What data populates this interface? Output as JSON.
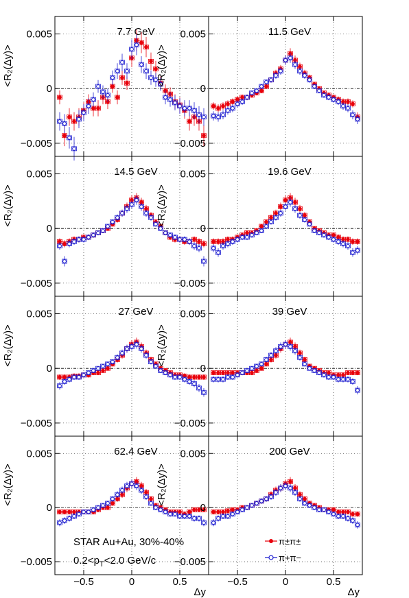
{
  "figure": {
    "ylabel": "<R₂(Δy)>",
    "xlabel": "Δy",
    "x_ticks": [
      "−0.5",
      "0",
      "0.5"
    ],
    "x_tick_values": [
      -0.5,
      0,
      0.5
    ],
    "y_ticks": [
      "−0.005",
      "0",
      "0.005"
    ],
    "y_tick_values": [
      -0.005,
      0,
      0.005
    ],
    "colors": {
      "pi_pm_pi_pm": "#e8000b",
      "pi_p_pi_m": "#1f1fd0",
      "axis": "#000000",
      "grid": "#000000"
    }
  },
  "annotations": {
    "line1": "STAR Au+Au, 30%-40%",
    "line2": "0.2<p",
    "line2_sub": "T",
    "line2_end": "<2.0 GeV/c"
  },
  "legend": {
    "position": "bottom-right panel",
    "entry1": "π±π±",
    "entry2": "π+π−"
  },
  "chart_data": [
    {
      "type": "scatter",
      "title": "7.7 GeV",
      "xlim": [
        -0.8,
        0.8
      ],
      "ylim": [
        -0.0062,
        0.0066
      ],
      "x": [
        -0.75,
        -0.7,
        -0.65,
        -0.6,
        -0.55,
        -0.5,
        -0.45,
        -0.4,
        -0.35,
        -0.3,
        -0.25,
        -0.2,
        -0.15,
        -0.1,
        -0.05,
        0,
        0.05,
        0.1,
        0.15,
        0.2,
        0.25,
        0.3,
        0.35,
        0.4,
        0.45,
        0.5,
        0.55,
        0.6,
        0.65,
        0.7,
        0.75
      ],
      "series": [
        {
          "name": "π±π±",
          "values": [
            -0.0008,
            -0.0043,
            -0.0026,
            -0.003,
            -0.0026,
            -0.002,
            -0.0012,
            -0.0018,
            -0.0018,
            -0.0008,
            -0.0012,
            0.0002,
            -0.0008,
            0.001,
            0.0005,
            0.0028,
            0.0044,
            0.0042,
            0.0038,
            0.0025,
            0.0018,
            0.0005,
            -0.0002,
            -0.0005,
            -0.0012,
            -0.0015,
            -0.002,
            -0.003,
            -0.0026,
            -0.003,
            -0.0043
          ]
        },
        {
          "name": "π+π−",
          "values": [
            -0.003,
            -0.0032,
            -0.0045,
            -0.0055,
            -0.0028,
            -0.0022,
            -0.0016,
            -0.001,
            0.0002,
            -0.0003,
            -0.0006,
            0.001,
            0.0016,
            0.0024,
            0.0016,
            0.0036,
            0.004,
            0.0022,
            0.0016,
            0.001,
            0.0008,
            0.0004,
            -0.0008,
            -0.001,
            -0.0013,
            -0.0016,
            -0.0018,
            -0.0018,
            -0.002,
            -0.0024,
            -0.0026
          ]
        }
      ]
    },
    {
      "type": "scatter",
      "title": "11.5 GeV",
      "xlim": [
        -0.8,
        0.8
      ],
      "ylim": [
        -0.0062,
        0.0066
      ],
      "x": [
        -0.75,
        -0.7,
        -0.65,
        -0.6,
        -0.55,
        -0.5,
        -0.45,
        -0.4,
        -0.35,
        -0.3,
        -0.25,
        -0.2,
        -0.15,
        -0.1,
        -0.05,
        0,
        0.05,
        0.1,
        0.15,
        0.2,
        0.25,
        0.3,
        0.35,
        0.4,
        0.45,
        0.5,
        0.55,
        0.6,
        0.65,
        0.7,
        0.75
      ],
      "series": [
        {
          "name": "π±π±",
          "values": [
            -0.0016,
            -0.0018,
            -0.0016,
            -0.0014,
            -0.0012,
            -0.001,
            -0.0008,
            -0.0008,
            -0.0006,
            -0.0004,
            -0.0002,
            0.0002,
            0.0008,
            0.0014,
            0.0018,
            0.0026,
            0.0032,
            0.0026,
            0.002,
            0.0014,
            0.001,
            0.0004,
            0.0,
            -0.0004,
            -0.0006,
            -0.0008,
            -0.001,
            -0.0012,
            -0.0012,
            -0.0014,
            -0.0026
          ]
        },
        {
          "name": "π+π−",
          "values": [
            -0.0025,
            -0.0026,
            -0.0024,
            -0.002,
            -0.0018,
            -0.0014,
            -0.0012,
            -0.0008,
            -0.0004,
            -0.0002,
            0.0002,
            0.0006,
            0.0008,
            0.0012,
            0.0016,
            0.0026,
            0.0028,
            0.0022,
            0.0016,
            0.0012,
            0.0008,
            0.0002,
            -0.0002,
            -0.0006,
            -0.0008,
            -0.001,
            -0.0012,
            -0.0016,
            -0.0018,
            -0.0024,
            -0.0028
          ]
        }
      ]
    },
    {
      "type": "scatter",
      "title": "14.5 GeV",
      "xlim": [
        -0.8,
        0.8
      ],
      "ylim": [
        -0.0062,
        0.0066
      ],
      "x": [
        -0.75,
        -0.7,
        -0.65,
        -0.6,
        -0.55,
        -0.5,
        -0.45,
        -0.4,
        -0.35,
        -0.3,
        -0.25,
        -0.2,
        -0.15,
        -0.1,
        -0.05,
        0,
        0.05,
        0.1,
        0.15,
        0.2,
        0.25,
        0.3,
        0.35,
        0.4,
        0.45,
        0.5,
        0.55,
        0.6,
        0.65,
        0.7,
        0.75
      ],
      "series": [
        {
          "name": "π±π±",
          "values": [
            -0.0012,
            -0.0014,
            -0.0012,
            -0.001,
            -0.001,
            -0.0008,
            -0.0008,
            -0.0006,
            -0.0004,
            -0.0002,
            0.0,
            0.0004,
            0.0008,
            0.0014,
            0.002,
            0.0026,
            0.0028,
            0.0024,
            0.0018,
            0.0012,
            0.0006,
            0.0002,
            -0.0004,
            -0.0008,
            -0.001,
            -0.001,
            -0.0012,
            -0.0012,
            -0.001,
            -0.0012,
            -0.0014
          ]
        },
        {
          "name": "π+π−",
          "values": [
            -0.0016,
            -0.003,
            -0.0014,
            -0.0012,
            -0.001,
            -0.001,
            -0.0008,
            -0.0006,
            -0.0004,
            -0.0002,
            0.0002,
            0.0006,
            0.001,
            0.0014,
            0.0018,
            0.0022,
            0.0026,
            0.002,
            0.0014,
            0.001,
            0.0004,
            0.0,
            -0.0004,
            -0.0006,
            -0.0008,
            -0.001,
            -0.001,
            -0.0012,
            -0.0016,
            -0.0018,
            -0.003
          ]
        }
      ]
    },
    {
      "type": "scatter",
      "title": "19.6 GeV",
      "xlim": [
        -0.8,
        0.8
      ],
      "ylim": [
        -0.0062,
        0.0066
      ],
      "x": [
        -0.75,
        -0.7,
        -0.65,
        -0.6,
        -0.55,
        -0.5,
        -0.45,
        -0.4,
        -0.35,
        -0.3,
        -0.25,
        -0.2,
        -0.15,
        -0.1,
        -0.05,
        0,
        0.05,
        0.1,
        0.15,
        0.2,
        0.25,
        0.3,
        0.35,
        0.4,
        0.45,
        0.5,
        0.55,
        0.6,
        0.65,
        0.7,
        0.75
      ],
      "series": [
        {
          "name": "π±π±",
          "values": [
            -0.0012,
            -0.0012,
            -0.0012,
            -0.001,
            -0.001,
            -0.0008,
            -0.0006,
            -0.0004,
            -0.0004,
            -0.0002,
            0.0002,
            0.0006,
            0.001,
            0.0014,
            0.002,
            0.0026,
            0.0028,
            0.0024,
            0.0018,
            0.0012,
            0.0006,
            0.0,
            -0.0002,
            -0.0004,
            -0.0006,
            -0.0006,
            -0.0008,
            -0.001,
            -0.001,
            -0.0012,
            -0.0012
          ]
        },
        {
          "name": "π+π−",
          "values": [
            -0.0018,
            -0.0022,
            -0.0016,
            -0.0014,
            -0.0012,
            -0.001,
            -0.0008,
            -0.0008,
            -0.0006,
            -0.0004,
            -0.0002,
            0.0002,
            0.0006,
            0.001,
            0.0014,
            0.002,
            0.0024,
            0.0018,
            0.0012,
            0.0008,
            0.0004,
            -0.0002,
            -0.0004,
            -0.0006,
            -0.0008,
            -0.001,
            -0.0012,
            -0.0014,
            -0.0016,
            -0.0022,
            -0.002
          ]
        }
      ]
    },
    {
      "type": "scatter",
      "title": "27 GeV",
      "xlim": [
        -0.8,
        0.8
      ],
      "ylim": [
        -0.0062,
        0.0066
      ],
      "x": [
        -0.75,
        -0.7,
        -0.65,
        -0.6,
        -0.55,
        -0.5,
        -0.45,
        -0.4,
        -0.35,
        -0.3,
        -0.25,
        -0.2,
        -0.15,
        -0.1,
        -0.05,
        0,
        0.05,
        0.1,
        0.15,
        0.2,
        0.25,
        0.3,
        0.35,
        0.4,
        0.45,
        0.5,
        0.55,
        0.6,
        0.65,
        0.7,
        0.75
      ],
      "series": [
        {
          "name": "π±π±",
          "values": [
            -0.0008,
            -0.0008,
            -0.0008,
            -0.0007,
            -0.0007,
            -0.0006,
            -0.0006,
            -0.0004,
            -0.0004,
            -0.0002,
            0.0,
            0.0004,
            0.0008,
            0.0012,
            0.0018,
            0.0022,
            0.0024,
            0.002,
            0.0014,
            0.0008,
            0.0004,
            0.0,
            -0.0002,
            -0.0004,
            -0.0006,
            -0.0006,
            -0.0007,
            -0.0008,
            -0.0008,
            -0.0008,
            -0.0008
          ]
        },
        {
          "name": "π+π−",
          "values": [
            -0.0016,
            -0.0012,
            -0.001,
            -0.0008,
            -0.0008,
            -0.0006,
            -0.0004,
            -0.0002,
            0.0,
            0.0002,
            0.0004,
            0.0006,
            0.001,
            0.0014,
            0.0018,
            0.002,
            0.0022,
            0.0018,
            0.0012,
            0.0006,
            0.0002,
            -0.0002,
            -0.0004,
            -0.0006,
            -0.0008,
            -0.0008,
            -0.001,
            -0.0012,
            -0.0014,
            -0.0018,
            -0.0022
          ]
        }
      ]
    },
    {
      "type": "scatter",
      "title": "39 GeV",
      "xlim": [
        -0.8,
        0.8
      ],
      "ylim": [
        -0.0062,
        0.0066
      ],
      "x": [
        -0.75,
        -0.7,
        -0.65,
        -0.6,
        -0.55,
        -0.5,
        -0.45,
        -0.4,
        -0.35,
        -0.3,
        -0.25,
        -0.2,
        -0.15,
        -0.1,
        -0.05,
        0,
        0.05,
        0.1,
        0.15,
        0.2,
        0.25,
        0.3,
        0.35,
        0.4,
        0.45,
        0.5,
        0.55,
        0.6,
        0.65,
        0.7,
        0.75
      ],
      "series": [
        {
          "name": "π±π±",
          "values": [
            -0.0004,
            -0.0004,
            -0.0004,
            -0.0004,
            -0.0004,
            -0.0004,
            -0.0004,
            -0.0004,
            -0.0004,
            -0.0002,
            0.0,
            0.0004,
            0.0008,
            0.0012,
            0.0018,
            0.0022,
            0.0024,
            0.002,
            0.0014,
            0.0008,
            0.0002,
            0.0,
            -0.0002,
            -0.0004,
            -0.0004,
            -0.0006,
            -0.0006,
            -0.0006,
            -0.0004,
            -0.0004,
            -0.0004
          ]
        },
        {
          "name": "π+π−",
          "values": [
            -0.001,
            -0.001,
            -0.001,
            -0.0008,
            -0.0008,
            -0.0006,
            -0.0004,
            -0.0002,
            0.0,
            0.0002,
            0.0004,
            0.0008,
            0.0012,
            0.0016,
            0.002,
            0.0022,
            0.002,
            0.0016,
            0.001,
            0.0004,
            0.0,
            -0.0002,
            -0.0004,
            -0.0006,
            -0.0008,
            -0.0008,
            -0.001,
            -0.001,
            -0.001,
            -0.0012,
            -0.002
          ]
        }
      ]
    },
    {
      "type": "scatter",
      "title": "62.4 GeV",
      "xlim": [
        -0.8,
        0.8
      ],
      "ylim": [
        -0.0062,
        0.0066
      ],
      "x": [
        -0.75,
        -0.7,
        -0.65,
        -0.6,
        -0.55,
        -0.5,
        -0.45,
        -0.4,
        -0.35,
        -0.3,
        -0.25,
        -0.2,
        -0.15,
        -0.1,
        -0.05,
        0,
        0.05,
        0.1,
        0.15,
        0.2,
        0.25,
        0.3,
        0.35,
        0.4,
        0.45,
        0.5,
        0.55,
        0.6,
        0.65,
        0.7,
        0.75
      ],
      "series": [
        {
          "name": "π±π±",
          "values": [
            -0.0004,
            -0.0004,
            -0.0004,
            -0.0004,
            -0.0004,
            -0.0004,
            -0.0004,
            -0.0004,
            -0.0002,
            0.0,
            0.0,
            0.0004,
            0.0008,
            0.0012,
            0.0018,
            0.0022,
            0.0024,
            0.002,
            0.0014,
            0.0008,
            0.0002,
            0.0,
            -0.0002,
            -0.0004,
            -0.0004,
            -0.0004,
            -0.0006,
            -0.0004,
            -0.0002,
            -0.0002,
            -0.0002
          ]
        },
        {
          "name": "π+π−",
          "values": [
            -0.0014,
            -0.0012,
            -0.001,
            -0.0008,
            -0.0006,
            -0.0004,
            -0.0004,
            -0.0002,
            0.0,
            0.0002,
            0.0004,
            0.0008,
            0.0012,
            0.0016,
            0.002,
            0.0022,
            0.002,
            0.0016,
            0.001,
            0.0004,
            0.0,
            -0.0002,
            -0.0004,
            -0.0006,
            -0.0006,
            -0.0008,
            -0.0008,
            -0.0008,
            -0.001,
            -0.001,
            -0.0014
          ]
        }
      ]
    },
    {
      "type": "scatter",
      "title": "200 GeV",
      "xlim": [
        -0.8,
        0.8
      ],
      "ylim": [
        -0.0062,
        0.0066
      ],
      "x": [
        -0.75,
        -0.7,
        -0.65,
        -0.6,
        -0.55,
        -0.5,
        -0.45,
        -0.4,
        -0.35,
        -0.3,
        -0.25,
        -0.2,
        -0.15,
        -0.1,
        -0.05,
        0,
        0.05,
        0.1,
        0.15,
        0.2,
        0.25,
        0.3,
        0.35,
        0.4,
        0.45,
        0.5,
        0.55,
        0.6,
        0.65,
        0.7,
        0.75
      ],
      "series": [
        {
          "name": "π±π±",
          "values": [
            -0.0004,
            -0.0004,
            -0.0004,
            -0.0003,
            -0.0002,
            -0.0002,
            0.0,
            0.0,
            0.0002,
            0.0004,
            0.0006,
            0.0008,
            0.0012,
            0.0016,
            0.0018,
            0.0022,
            0.0024,
            0.0018,
            0.0012,
            0.0008,
            0.0004,
            0.0002,
            0.0,
            -0.0002,
            -0.0002,
            -0.0002,
            -0.0004,
            -0.0004,
            -0.0004,
            -0.0006,
            -0.0006
          ]
        },
        {
          "name": "π+π−",
          "values": [
            -0.0014,
            -0.001,
            -0.0008,
            -0.0008,
            -0.0006,
            -0.0004,
            -0.0002,
            0.0,
            0.0002,
            0.0004,
            0.0006,
            0.0008,
            0.001,
            0.0014,
            0.0018,
            0.002,
            0.0018,
            0.0014,
            0.0008,
            0.0004,
            0.0002,
            0.0,
            -0.0002,
            -0.0002,
            -0.0004,
            -0.0006,
            -0.0008,
            -0.0008,
            -0.001,
            -0.0012,
            -0.0016
          ]
        }
      ]
    }
  ]
}
